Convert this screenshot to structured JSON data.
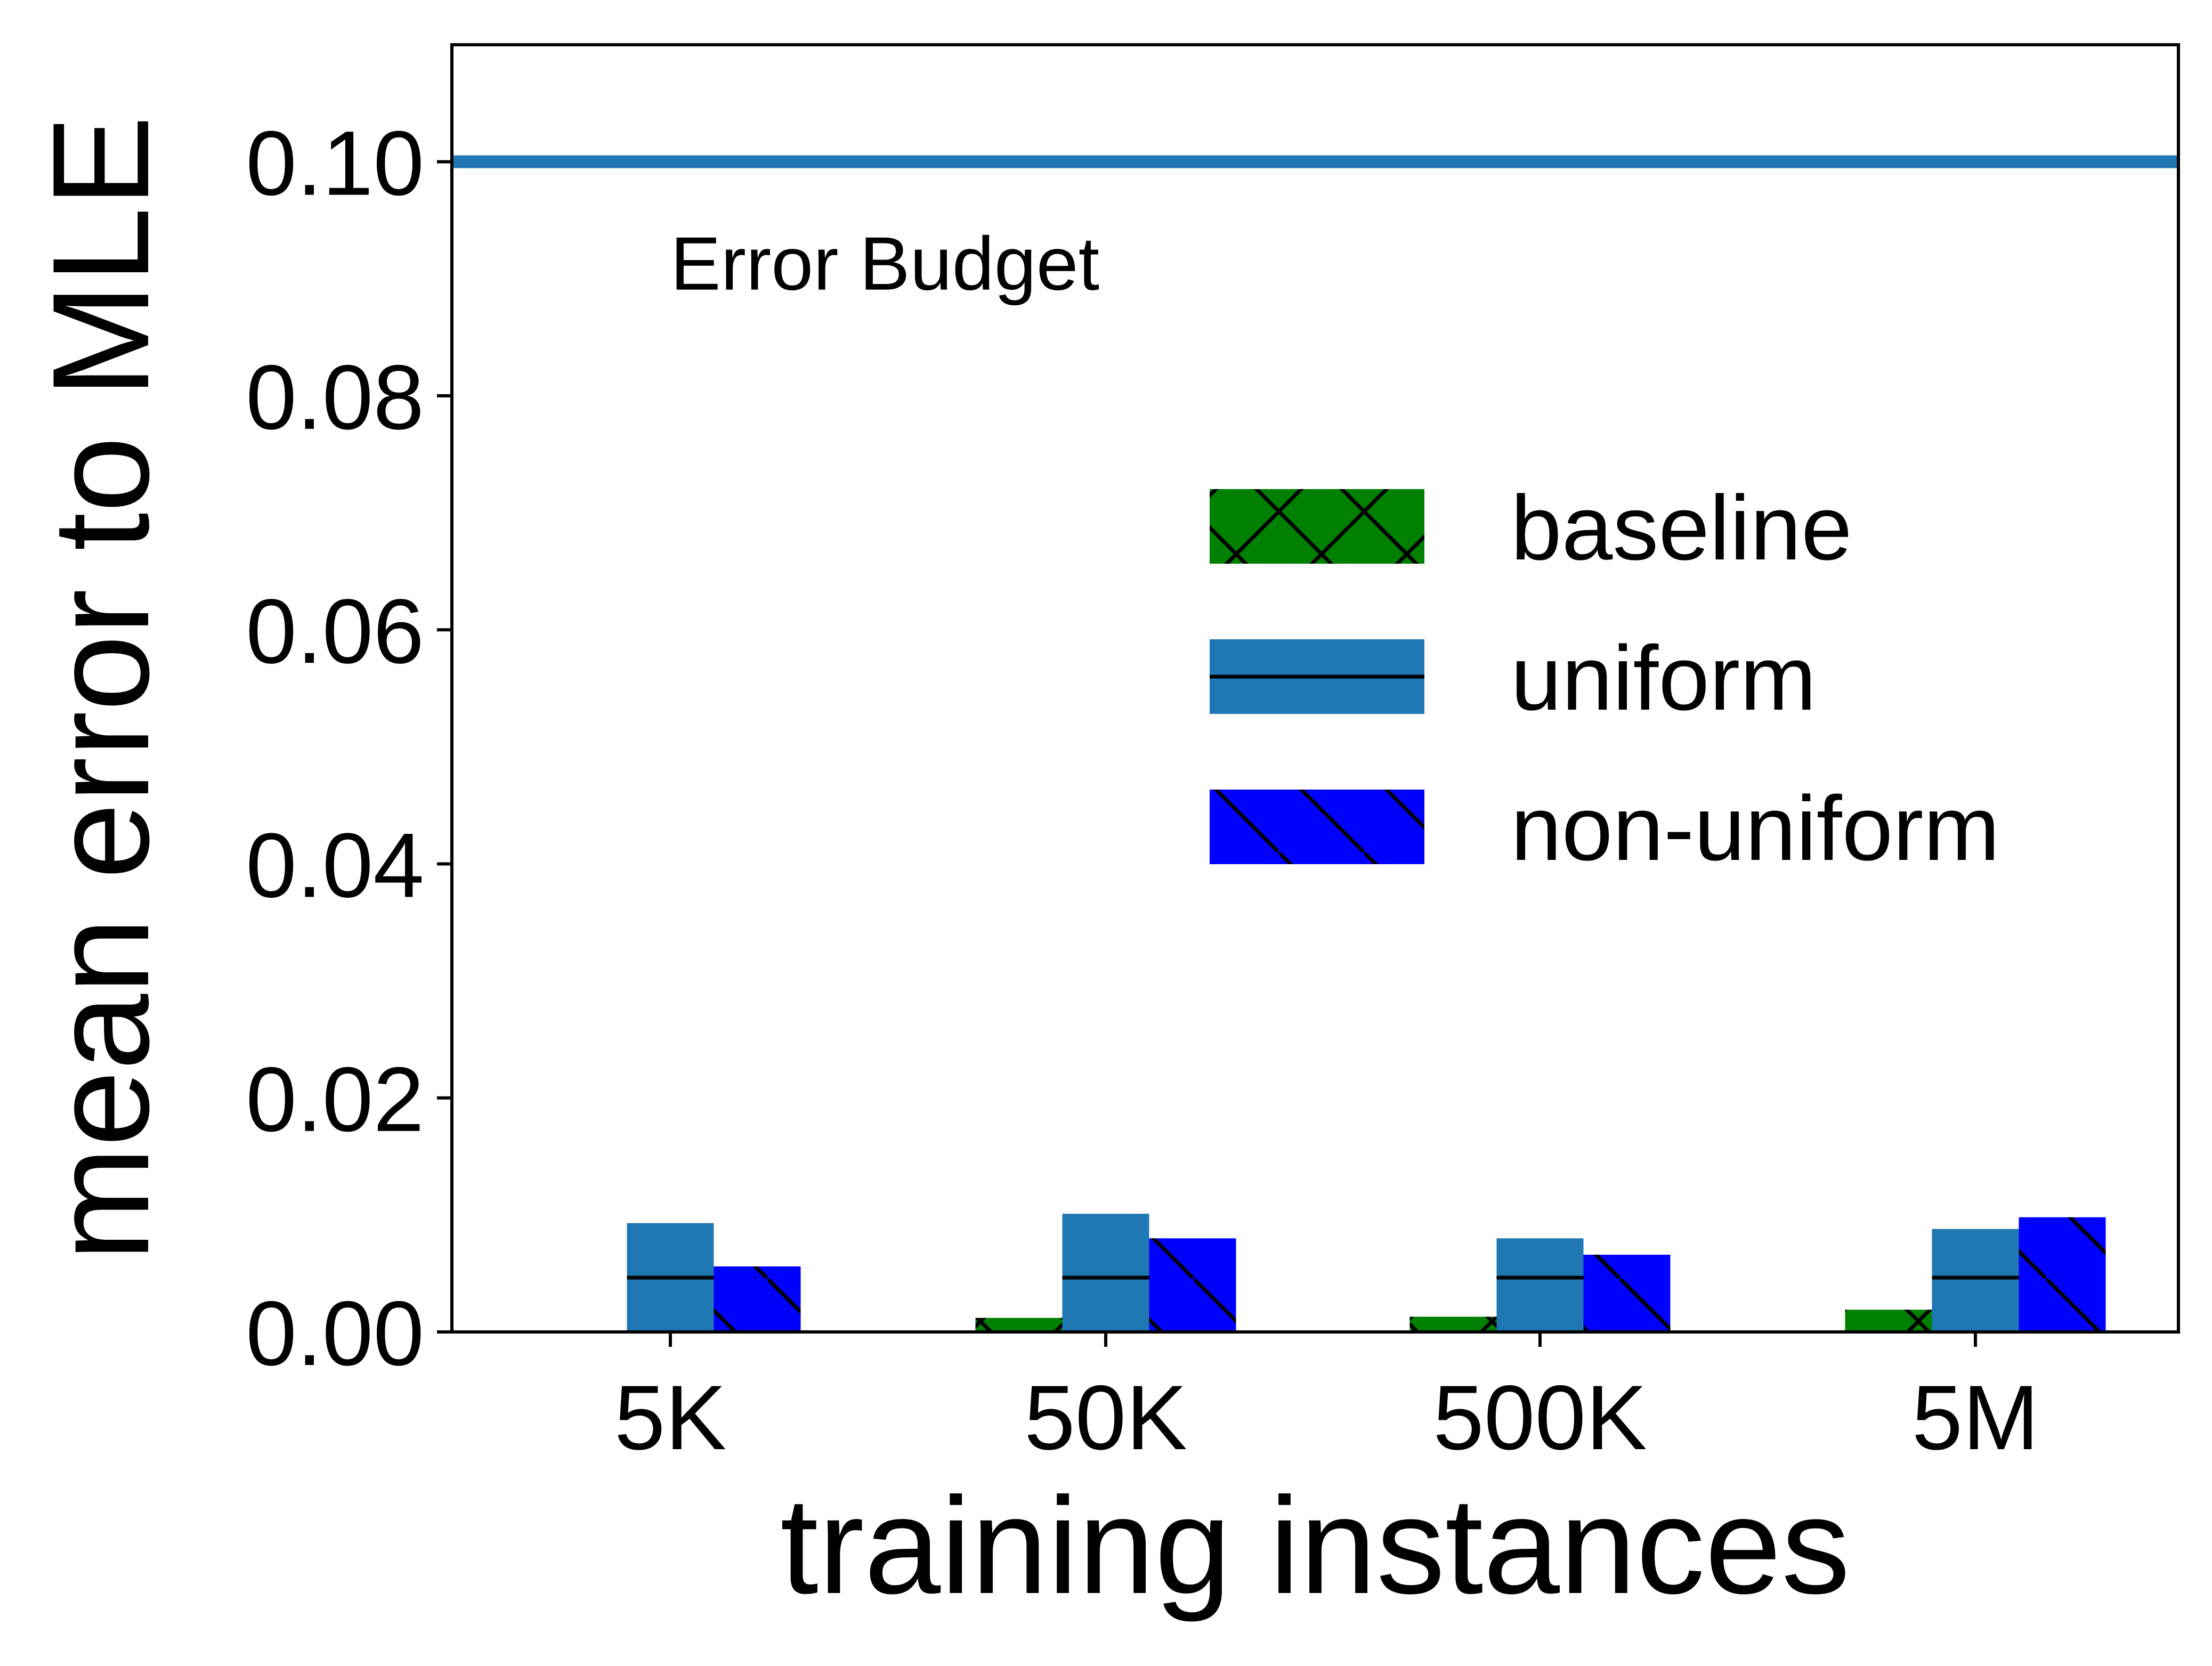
{
  "chart_data": {
    "type": "bar",
    "xlabel": "training instances",
    "ylabel": "mean error to MLE",
    "categories": [
      "5K",
      "50K",
      "500K",
      "5M"
    ],
    "series": [
      {
        "name": "baseline",
        "values": [
          0.0,
          0.0012,
          0.0013,
          0.0019
        ],
        "color": "#008000",
        "hatch": "x"
      },
      {
        "name": "uniform",
        "values": [
          0.0093,
          0.0101,
          0.008,
          0.0088
        ],
        "color": "#1f77b4",
        "hatch": "-"
      },
      {
        "name": "non-uniform",
        "values": [
          0.0056,
          0.008,
          0.0066,
          0.0098
        ],
        "color": "#0000ff",
        "hatch": "\\"
      }
    ],
    "ylim": [
      0,
      0.11
    ],
    "yticks": [
      0.0,
      0.02,
      0.04,
      0.06,
      0.08,
      0.1
    ],
    "ytick_labels": [
      "0.00",
      "0.02",
      "0.04",
      "0.06",
      "0.08",
      "0.10"
    ],
    "reference_line": {
      "value": 0.1,
      "label": "Error Budget",
      "color": "#1f77b4"
    },
    "legend": {
      "position": "center-right",
      "entries": [
        "baseline",
        "uniform",
        "non-uniform"
      ]
    },
    "grid": false
  }
}
